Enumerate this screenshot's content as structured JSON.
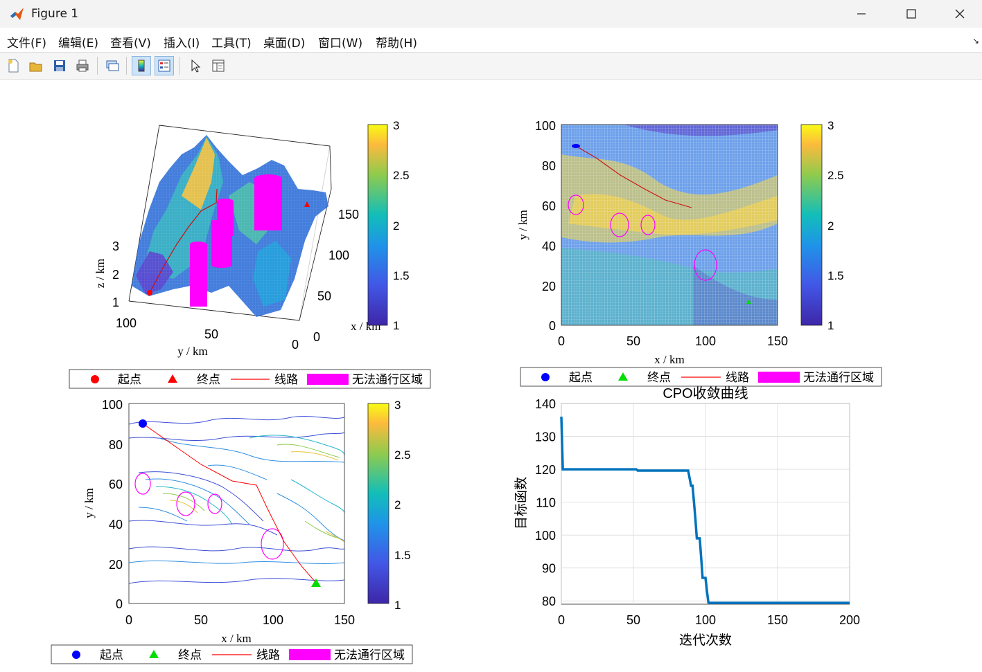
{
  "window": {
    "title": "Figure 1"
  },
  "menu": [
    "文件(F)",
    "编辑(E)",
    "查看(V)",
    "插入(I)",
    "工具(T)",
    "桌面(D)",
    "窗口(W)",
    "帮助(H)"
  ],
  "colorbar_ticks": [
    "1",
    "1.5",
    "2",
    "2.5",
    "3"
  ],
  "legend": {
    "start": "起点",
    "end": "终点",
    "route": "线路",
    "obstacle": "无法通行区域"
  },
  "colors": {
    "route": "#ff0000",
    "obstacle": "#ff00ff",
    "start_3d": "#ff0000",
    "start_2d": "#0000ff",
    "end_2d": "#00dd00",
    "curve": "#0072bd"
  },
  "plot3d": {
    "xlabel": "x / km",
    "ylabel": "y / km",
    "zlabel": "z / km",
    "xticks": [
      "0",
      "50",
      "100",
      "150"
    ],
    "yticks": [
      "100",
      "50",
      "0"
    ],
    "zticks": [
      "1",
      "2",
      "3"
    ]
  },
  "plot_top": {
    "xlabel": "x / km",
    "ylabel": "y / km",
    "xticks": [
      "0",
      "50",
      "100",
      "150"
    ],
    "yticks": [
      "0",
      "20",
      "40",
      "60",
      "80",
      "100"
    ]
  },
  "plot_contour": {
    "xlabel": "x / km",
    "ylabel": "y / km",
    "xticks": [
      "0",
      "50",
      "100",
      "150"
    ],
    "yticks": [
      "0",
      "20",
      "40",
      "60",
      "80",
      "100"
    ]
  },
  "chart_data": {
    "type": "line",
    "title": "CPO收敛曲线",
    "xlabel": "迭代次数",
    "ylabel": "目标函数",
    "xlim": [
      0,
      200
    ],
    "ylim": [
      79,
      140
    ],
    "xticks": [
      0,
      50,
      100,
      150,
      200
    ],
    "yticks": [
      80,
      90,
      100,
      110,
      120,
      130,
      140
    ],
    "grid": true,
    "x": [
      0,
      1,
      2,
      52,
      53,
      88,
      90,
      91,
      92,
      93,
      94,
      95,
      96,
      97,
      98,
      99,
      100,
      101,
      102,
      103,
      200
    ],
    "y": [
      136,
      120,
      120,
      120,
      119.6,
      119.6,
      115,
      115,
      110,
      105,
      99,
      99,
      99,
      93,
      87,
      87,
      87,
      83,
      79.5,
      79.4,
      79.4
    ]
  }
}
